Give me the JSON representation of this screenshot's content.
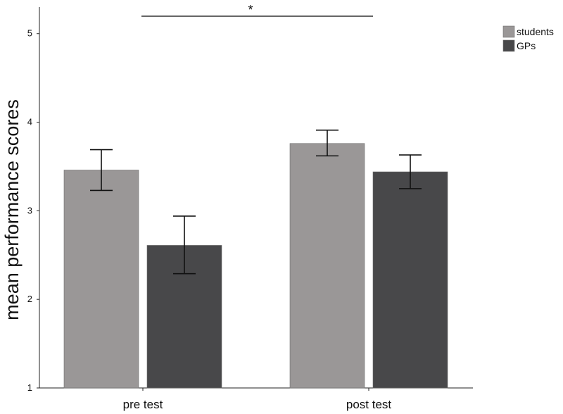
{
  "chart_data": {
    "type": "bar",
    "title": "",
    "xlabel": "",
    "ylabel": "mean performance scores",
    "categories": [
      "pre test",
      "post test"
    ],
    "ylim": [
      1,
      5.3
    ],
    "yticks": [
      1,
      2,
      3,
      4,
      5
    ],
    "grid": false,
    "legend_position": "top-right",
    "series": [
      {
        "name": "students",
        "color": "#9a9797",
        "values": [
          3.46,
          3.76
        ],
        "error_low": [
          3.23,
          3.62
        ],
        "error_high": [
          3.69,
          3.91
        ]
      },
      {
        "name": "GPs",
        "color": "#48484a",
        "values": [
          2.61,
          3.44
        ],
        "error_low": [
          2.29,
          3.25
        ],
        "error_high": [
          2.94,
          3.63
        ]
      }
    ],
    "annotations": [
      {
        "text": "*",
        "type": "significance-bracket",
        "from_category": "pre test",
        "to_category": "post test"
      }
    ]
  }
}
